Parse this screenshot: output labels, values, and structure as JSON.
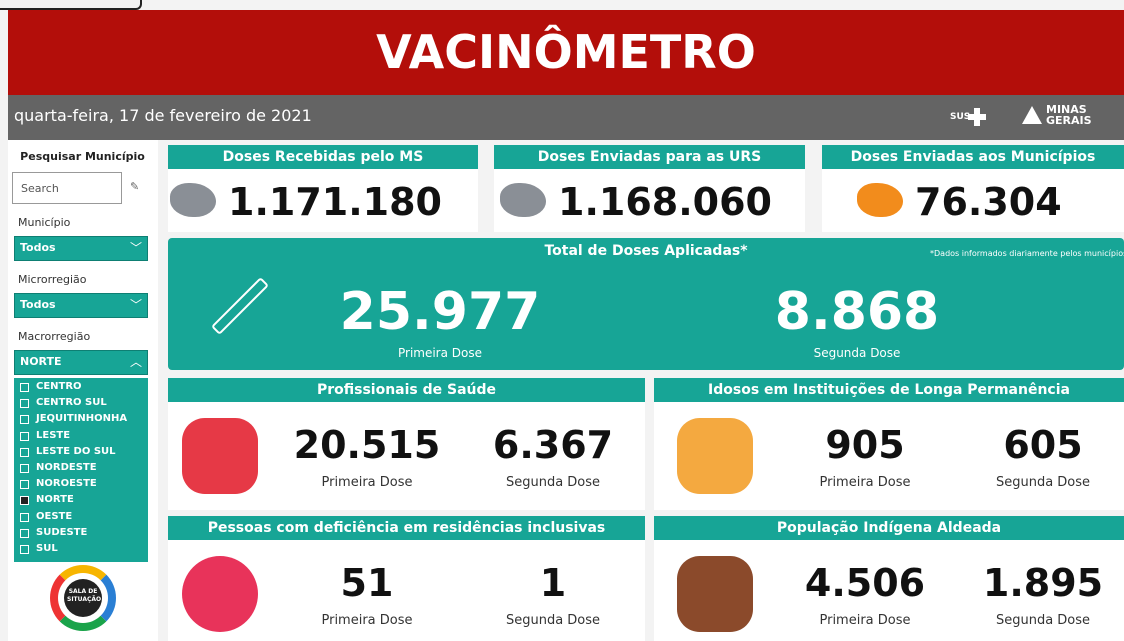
{
  "header": {
    "title": "VACINÔMETRO",
    "date": "quarta-feira, 17 de fevereiro de 2021",
    "logo_sus": "SUS",
    "logo_state": [
      "MINAS",
      "GERAIS"
    ]
  },
  "sidebar": {
    "search_title": "Pesquisar Município",
    "search_placeholder": "Search",
    "filters": [
      {
        "label": "Município",
        "value": "Todos"
      },
      {
        "label": "Microrregião",
        "value": "Todos"
      },
      {
        "label": "Macrorregião",
        "value": "NORTE"
      }
    ],
    "options": [
      {
        "name": "CENTRO",
        "checked": false
      },
      {
        "name": "CENTRO SUL",
        "checked": false
      },
      {
        "name": "JEQUITINHONHA",
        "checked": false
      },
      {
        "name": "LESTE",
        "checked": false
      },
      {
        "name": "LESTE DO SUL",
        "checked": false
      },
      {
        "name": "NORDESTE",
        "checked": false
      },
      {
        "name": "NOROESTE",
        "checked": false
      },
      {
        "name": "NORTE",
        "checked": true
      },
      {
        "name": "OESTE",
        "checked": false
      },
      {
        "name": "SUDESTE",
        "checked": false
      },
      {
        "name": "SUL",
        "checked": false
      }
    ],
    "logo": [
      "SALA DE",
      "SITUAÇÃO"
    ]
  },
  "top_cards": [
    {
      "title": "Doses Recebidas pelo MS",
      "value": "1.171.180"
    },
    {
      "title": "Doses Enviadas para as URS",
      "value": "1.168.060"
    },
    {
      "title": "Doses Enviadas aos Municípios",
      "value": "76.304"
    }
  ],
  "total": {
    "title": "Total de Doses Aplicadas*",
    "note": "*Dados informados diariamente pelos municípios",
    "first": {
      "value": "25.977",
      "label": "Primeira Dose"
    },
    "second": {
      "value": "8.868",
      "label": "Segunda Dose"
    }
  },
  "groups": [
    {
      "title": "Profissionais de Saúde",
      "first": {
        "value": "20.515",
        "label": "Primeira Dose"
      },
      "second": {
        "value": "6.367",
        "label": "Segunda Dose"
      }
    },
    {
      "title": "Idosos em Instituições de Longa Permanência",
      "first": {
        "value": "905",
        "label": "Primeira Dose"
      },
      "second": {
        "value": "605",
        "label": "Segunda Dose"
      }
    },
    {
      "title": "Pessoas com deficiência em residências inclusivas",
      "first": {
        "value": "51",
        "label": "Primeira Dose"
      },
      "second": {
        "value": "1",
        "label": "Segunda Dose"
      }
    },
    {
      "title": "População Indígena Aldeada",
      "first": {
        "value": "4.506",
        "label": "Primeira Dose"
      },
      "second": {
        "value": "1.895",
        "label": "Segunda Dose"
      }
    }
  ]
}
